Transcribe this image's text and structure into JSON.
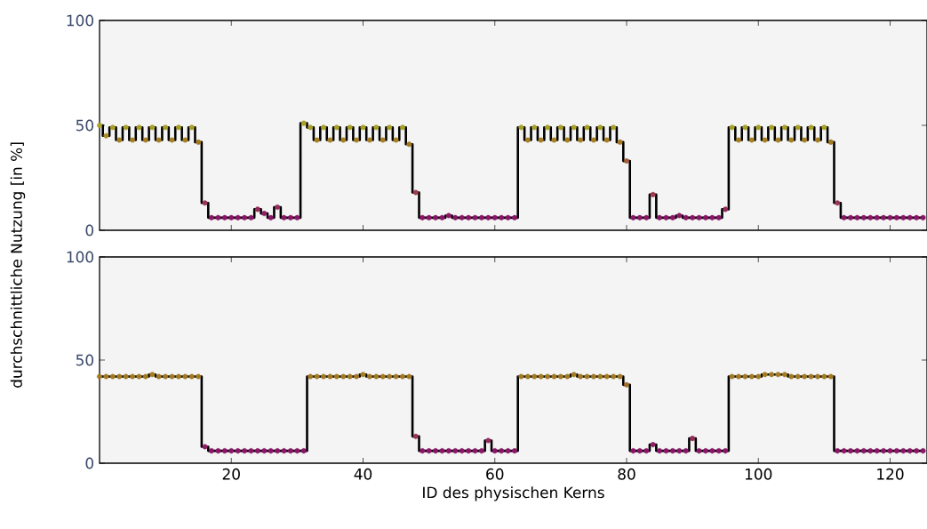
{
  "chart_data": [
    {
      "type": "step",
      "marker": "circle",
      "xlim": [
        0,
        125.6
      ],
      "xticks": [
        20,
        40,
        60,
        80,
        100,
        120
      ],
      "ylim": [
        0,
        100
      ],
      "yticks": [
        0,
        50,
        100
      ],
      "tick_labels": "y",
      "x": [
        0,
        1,
        2,
        3,
        4,
        5,
        6,
        7,
        8,
        9,
        10,
        11,
        12,
        13,
        14,
        15,
        16,
        17,
        18,
        19,
        20,
        21,
        22,
        23,
        24,
        25,
        26,
        27,
        28,
        29,
        30,
        31,
        32,
        33,
        34,
        35,
        36,
        37,
        38,
        39,
        40,
        41,
        42,
        43,
        44,
        45,
        46,
        47,
        48,
        49,
        50,
        51,
        52,
        53,
        54,
        55,
        56,
        57,
        58,
        59,
        60,
        61,
        62,
        63,
        64,
        65,
        66,
        67,
        68,
        69,
        70,
        71,
        72,
        73,
        74,
        75,
        76,
        77,
        78,
        79,
        80,
        81,
        82,
        83,
        84,
        85,
        86,
        87,
        88,
        89,
        90,
        91,
        92,
        93,
        94,
        95,
        96,
        97,
        98,
        99,
        100,
        101,
        102,
        103,
        104,
        105,
        106,
        107,
        108,
        109,
        110,
        111,
        112,
        113,
        114,
        115,
        116,
        117,
        118,
        119,
        120,
        121,
        122,
        123,
        124,
        125
      ],
      "series": [
        {
          "color": "#000000",
          "values": [
            50,
            45,
            49,
            43,
            49,
            43,
            49,
            43,
            49,
            43,
            49,
            43,
            49,
            43,
            49,
            42,
            13,
            6,
            6,
            6,
            6,
            6,
            6,
            6,
            10,
            8,
            6,
            11,
            6,
            6,
            6,
            51,
            49,
            43,
            49,
            43,
            49,
            43,
            49,
            43,
            49,
            43,
            49,
            43,
            49,
            43,
            49,
            41,
            18,
            6,
            6,
            6,
            6,
            7,
            6,
            6,
            6,
            6,
            6,
            6,
            6,
            6,
            6,
            6,
            49,
            43,
            49,
            43,
            49,
            43,
            49,
            43,
            49,
            43,
            49,
            43,
            49,
            43,
            49,
            42,
            33,
            6,
            6,
            6,
            17,
            6,
            6,
            6,
            7,
            6,
            6,
            6,
            6,
            6,
            6,
            10,
            49,
            43,
            49,
            43,
            49,
            43,
            49,
            43,
            49,
            43,
            49,
            43,
            49,
            43,
            49,
            42,
            13,
            6,
            6,
            6,
            6,
            6,
            6,
            6,
            6,
            6,
            6,
            6,
            6,
            6
          ],
          "colors": [
            "#aba22a",
            "#a88f25",
            "#a9a02a",
            "#a68022",
            "#a9a02a",
            "#a68022",
            "#a9a02a",
            "#a68022",
            "#a9a02a",
            "#a68022",
            "#a9a02a",
            "#a68022",
            "#a9a02a",
            "#a68022",
            "#a9a02a",
            "#a27a24",
            "#9a3557",
            "#8b1668",
            "#8b1668",
            "#8b1668",
            "#8b1668",
            "#8b1668",
            "#8b1668",
            "#8b1668",
            "#952a5c",
            "#901f63",
            "#8b1668",
            "#952a5c",
            "#8b1668",
            "#8b1668",
            "#8b1668",
            "#aba22a",
            "#a9a02a",
            "#a68022",
            "#a9a02a",
            "#a68022",
            "#a9a02a",
            "#a68022",
            "#a9a02a",
            "#a68022",
            "#a9a02a",
            "#a68022",
            "#a9a02a",
            "#a68022",
            "#a9a02a",
            "#a68022",
            "#a9a02a",
            "#a27a24",
            "#a03d50",
            "#8b1668",
            "#8b1668",
            "#8b1668",
            "#8b1668",
            "#8d1a66",
            "#8b1668",
            "#8b1668",
            "#8b1668",
            "#8b1668",
            "#8b1668",
            "#8b1668",
            "#8b1668",
            "#8b1668",
            "#8b1668",
            "#8b1668",
            "#a9a02a",
            "#a68022",
            "#a9a02a",
            "#a68022",
            "#a9a02a",
            "#a68022",
            "#a9a02a",
            "#a68022",
            "#a9a02a",
            "#a68022",
            "#a9a02a",
            "#a68022",
            "#a9a02a",
            "#a68022",
            "#a9a02a",
            "#a27a24",
            "#a5603a",
            "#8b1668",
            "#8b1668",
            "#8b1668",
            "#a03d50",
            "#8b1668",
            "#8b1668",
            "#8b1668",
            "#8d1a66",
            "#8b1668",
            "#8b1668",
            "#8b1668",
            "#8b1668",
            "#8b1668",
            "#8b1668",
            "#952a5c",
            "#a9a02a",
            "#a68022",
            "#a9a02a",
            "#a68022",
            "#a9a02a",
            "#a68022",
            "#a9a02a",
            "#a68022",
            "#a9a02a",
            "#a68022",
            "#a9a02a",
            "#a68022",
            "#a9a02a",
            "#a68022",
            "#a9a02a",
            "#a27a24",
            "#9a3557",
            "#8b1668",
            "#8b1668",
            "#8b1668",
            "#8b1668",
            "#8b1668",
            "#8b1668",
            "#8b1668",
            "#8b1668",
            "#8b1668",
            "#8b1668",
            "#8b1668",
            "#8b1668",
            "#8b1668"
          ]
        }
      ]
    },
    {
      "type": "step",
      "marker": "circle",
      "xlabel": "ID des physischen Kerns",
      "ylabel": "durchschnittliche Nutzung [in %]",
      "xlim": [
        0,
        125.6
      ],
      "xticks": [
        20,
        40,
        60,
        80,
        100,
        120
      ],
      "ylim": [
        0,
        100
      ],
      "yticks": [
        0,
        50,
        100
      ],
      "x": [
        0,
        1,
        2,
        3,
        4,
        5,
        6,
        7,
        8,
        9,
        10,
        11,
        12,
        13,
        14,
        15,
        16,
        17,
        18,
        19,
        20,
        21,
        22,
        23,
        24,
        25,
        26,
        27,
        28,
        29,
        30,
        31,
        32,
        33,
        34,
        35,
        36,
        37,
        38,
        39,
        40,
        41,
        42,
        43,
        44,
        45,
        46,
        47,
        48,
        49,
        50,
        51,
        52,
        53,
        54,
        55,
        56,
        57,
        58,
        59,
        60,
        61,
        62,
        63,
        64,
        65,
        66,
        67,
        68,
        69,
        70,
        71,
        72,
        73,
        74,
        75,
        76,
        77,
        78,
        79,
        80,
        81,
        82,
        83,
        84,
        85,
        86,
        87,
        88,
        89,
        90,
        91,
        92,
        93,
        94,
        95,
        96,
        97,
        98,
        99,
        100,
        101,
        102,
        103,
        104,
        105,
        106,
        107,
        108,
        109,
        110,
        111,
        112,
        113,
        114,
        115,
        116,
        117,
        118,
        119,
        120,
        121,
        122,
        123,
        124,
        125
      ],
      "series": [
        {
          "color": "#000000",
          "values": [
            42,
            42,
            42,
            42,
            42,
            42,
            42,
            42,
            43,
            42,
            42,
            42,
            42,
            42,
            42,
            42,
            8,
            6,
            6,
            6,
            6,
            6,
            6,
            6,
            6,
            6,
            6,
            6,
            6,
            6,
            6,
            6,
            42,
            42,
            42,
            42,
            42,
            42,
            42,
            42,
            43,
            42,
            42,
            42,
            42,
            42,
            42,
            42,
            13,
            6,
            6,
            6,
            6,
            6,
            6,
            6,
            6,
            6,
            6,
            11,
            6,
            6,
            6,
            6,
            42,
            42,
            42,
            42,
            42,
            42,
            42,
            42,
            43,
            42,
            42,
            42,
            42,
            42,
            42,
            42,
            38,
            6,
            6,
            6,
            9,
            6,
            6,
            6,
            6,
            6,
            12,
            6,
            6,
            6,
            6,
            6,
            42,
            42,
            42,
            42,
            42,
            43,
            43,
            43,
            43,
            42,
            42,
            42,
            42,
            42,
            42,
            42,
            6,
            6,
            6,
            6,
            6,
            6,
            6,
            6,
            6,
            6,
            6,
            6,
            6,
            6
          ],
          "colors": [
            "#a27a24",
            "#a27a24",
            "#a27a24",
            "#a27a24",
            "#a27a24",
            "#a27a24",
            "#a27a24",
            "#a27a24",
            "#a47d23",
            "#a27a24",
            "#a27a24",
            "#a27a24",
            "#a27a24",
            "#a27a24",
            "#a27a24",
            "#a27a24",
            "#901f63",
            "#8b1668",
            "#8b1668",
            "#8b1668",
            "#8b1668",
            "#8b1668",
            "#8b1668",
            "#8b1668",
            "#8b1668",
            "#8b1668",
            "#8b1668",
            "#8b1668",
            "#8b1668",
            "#8b1668",
            "#8b1668",
            "#8b1668",
            "#a27a24",
            "#a27a24",
            "#a27a24",
            "#a27a24",
            "#a27a24",
            "#a27a24",
            "#a27a24",
            "#a27a24",
            "#a47d23",
            "#a27a24",
            "#a27a24",
            "#a27a24",
            "#a27a24",
            "#a27a24",
            "#a27a24",
            "#a27a24",
            "#9a3557",
            "#8b1668",
            "#8b1668",
            "#8b1668",
            "#8b1668",
            "#8b1668",
            "#8b1668",
            "#8b1668",
            "#8b1668",
            "#8b1668",
            "#8b1668",
            "#952a5c",
            "#8b1668",
            "#8b1668",
            "#8b1668",
            "#8b1668",
            "#a27a24",
            "#a27a24",
            "#a27a24",
            "#a27a24",
            "#a27a24",
            "#a27a24",
            "#a27a24",
            "#a27a24",
            "#a47d23",
            "#a27a24",
            "#a27a24",
            "#a27a24",
            "#a27a24",
            "#a27a24",
            "#a27a24",
            "#a27a24",
            "#a3702a",
            "#8b1668",
            "#8b1668",
            "#8b1668",
            "#901f63",
            "#8b1668",
            "#8b1668",
            "#8b1668",
            "#8b1668",
            "#8b1668",
            "#952a5c",
            "#8b1668",
            "#8b1668",
            "#8b1668",
            "#8b1668",
            "#8b1668",
            "#a27a24",
            "#a27a24",
            "#a27a24",
            "#a27a24",
            "#a27a24",
            "#a47d23",
            "#a47d23",
            "#a47d23",
            "#a47d23",
            "#a27a24",
            "#a27a24",
            "#a27a24",
            "#a27a24",
            "#a27a24",
            "#a27a24",
            "#a27a24",
            "#8b1668",
            "#8b1668",
            "#8b1668",
            "#8b1668",
            "#8b1668",
            "#8b1668",
            "#8b1668",
            "#8b1668",
            "#8b1668",
            "#8b1668",
            "#8b1668",
            "#8b1668",
            "#8b1668",
            "#8b1668"
          ]
        }
      ]
    }
  ]
}
